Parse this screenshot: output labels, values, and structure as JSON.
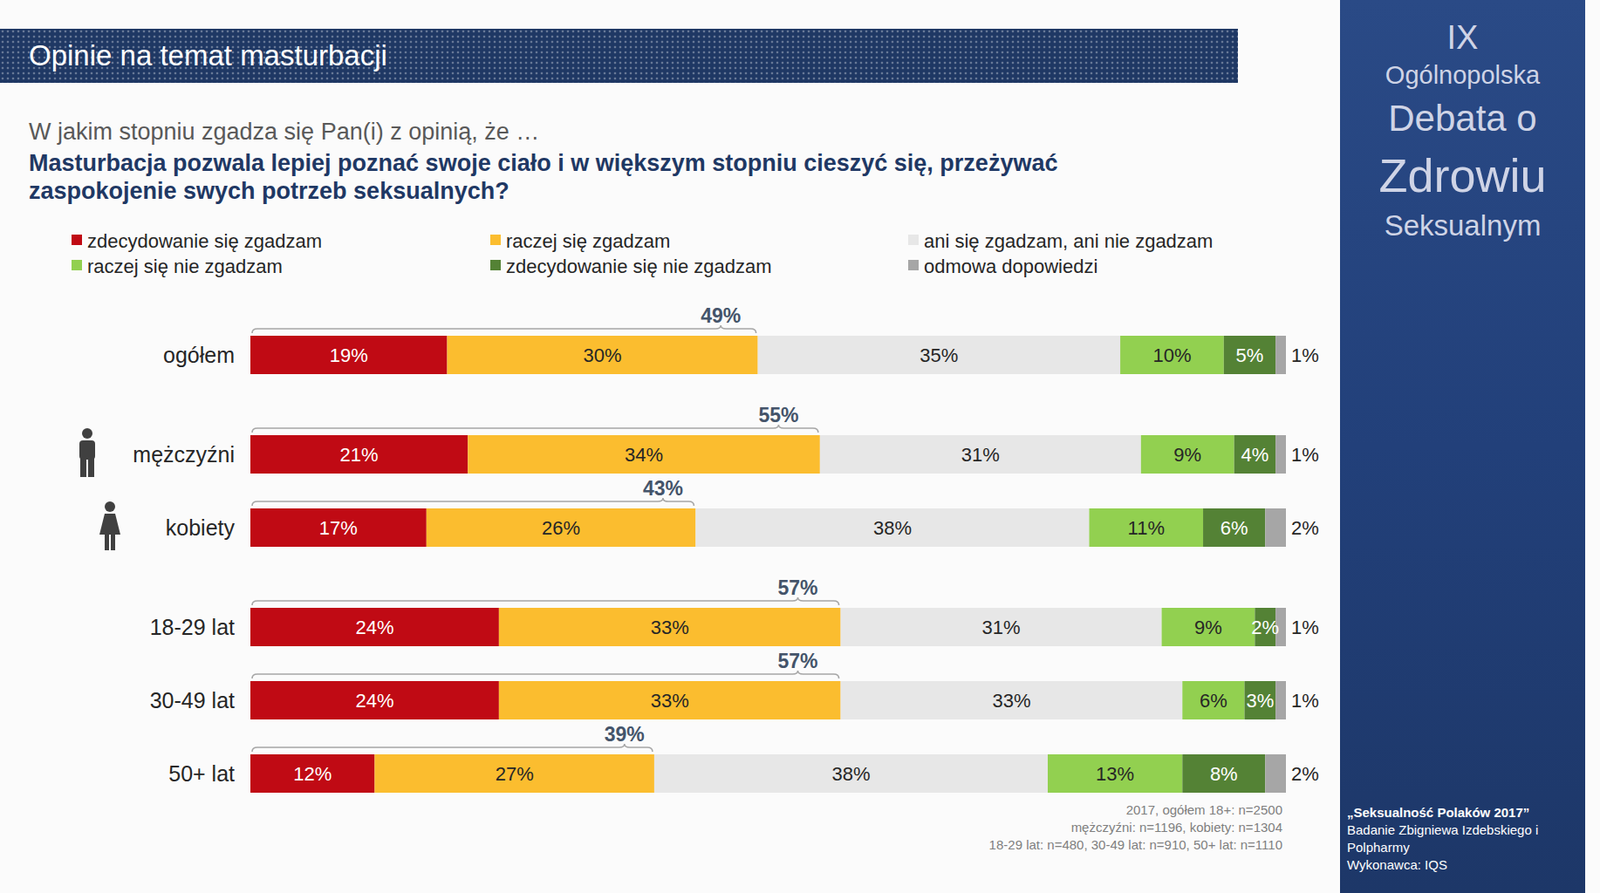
{
  "header": {
    "band_title": "Opinie na temat masturbacji",
    "question_intro": "W jakim stopniu zgadza się Pan(i) z opinią, że …",
    "question": "Masturbacja pozwala lepiej poznać swoje ciało i w większym stopniu cieszyć się, przeżywać zaspokojenie swych potrzeb seksualnych?"
  },
  "chart_data": {
    "type": "bar",
    "orientation": "horizontal",
    "stacked": true,
    "data_labels": true,
    "tick_labels": "y",
    "grid": false,
    "legend": "top",
    "categories": [
      "ogółem",
      "mężczyźni",
      "kobiety",
      "18-29 lat",
      "30-49 lat",
      "50+ lat"
    ],
    "xlim": [
      0,
      100
    ],
    "series": [
      {
        "name": "zdecydowanie się zgadzam",
        "color": "#c00a14",
        "values": [
          19,
          21,
          17,
          24,
          24,
          12
        ],
        "value_labels": [
          "19%",
          "21%",
          "17%",
          "24%",
          "24%",
          "12%"
        ]
      },
      {
        "name": "raczej się zgadzam",
        "color": "#fbbd2f",
        "values": [
          30,
          34,
          26,
          33,
          33,
          27
        ],
        "value_labels": [
          "30%",
          "34%",
          "26%",
          "33%",
          "33%",
          "27%"
        ]
      },
      {
        "name": "ani się zgadzam, ani nie zgadzam",
        "color": "#e7e7e7",
        "values": [
          35,
          31,
          38,
          31,
          33,
          38
        ],
        "value_labels": [
          "35%",
          "31%",
          "38%",
          "31%",
          "33%",
          "38%"
        ]
      },
      {
        "name": "raczej się nie zgadzam",
        "color": "#92d050",
        "values": [
          10,
          9,
          11,
          9,
          6,
          13
        ],
        "value_labels": [
          "10%",
          "9%",
          "11%",
          "9%",
          "6%",
          "13%"
        ]
      },
      {
        "name": "zdecydowanie się nie zgadzam",
        "color": "#548235",
        "values": [
          5,
          4,
          6,
          2,
          3,
          8
        ],
        "value_labels": [
          "5%",
          "4%",
          "6%",
          "2%",
          "3%",
          "8%"
        ]
      },
      {
        "name": "odmowa dopowiedzi",
        "color": "#a6a6a6",
        "values": [
          1,
          1,
          2,
          1,
          1,
          2
        ],
        "value_labels": [
          "1%",
          "1%",
          "2%",
          "1%",
          "1%",
          "2%"
        ]
      }
    ],
    "top2_totals": {
      "values": [
        49,
        55,
        43,
        57,
        57,
        39
      ],
      "value_labels": [
        "49%",
        "55%",
        "43%",
        "57%",
        "57%",
        "39%"
      ]
    },
    "notes": [
      "2017, ogółem 18+: n=2500",
      "mężczyźni: n=1196, kobiety: n=1304",
      "18-29 lat: n=480, 30-49 lat: n=910, 50+ lat: n=1110"
    ]
  },
  "sidebar": {
    "lines": [
      "IX",
      "Ogólnopolska",
      "Debata o",
      "Zdrowiu",
      "Seksualnym"
    ],
    "credits": [
      "„Seksualność Polaków 2017”",
      "Badanie Zbigniewa Izdebskiego i Polpharmy",
      "Wykonawca: IQS"
    ]
  }
}
